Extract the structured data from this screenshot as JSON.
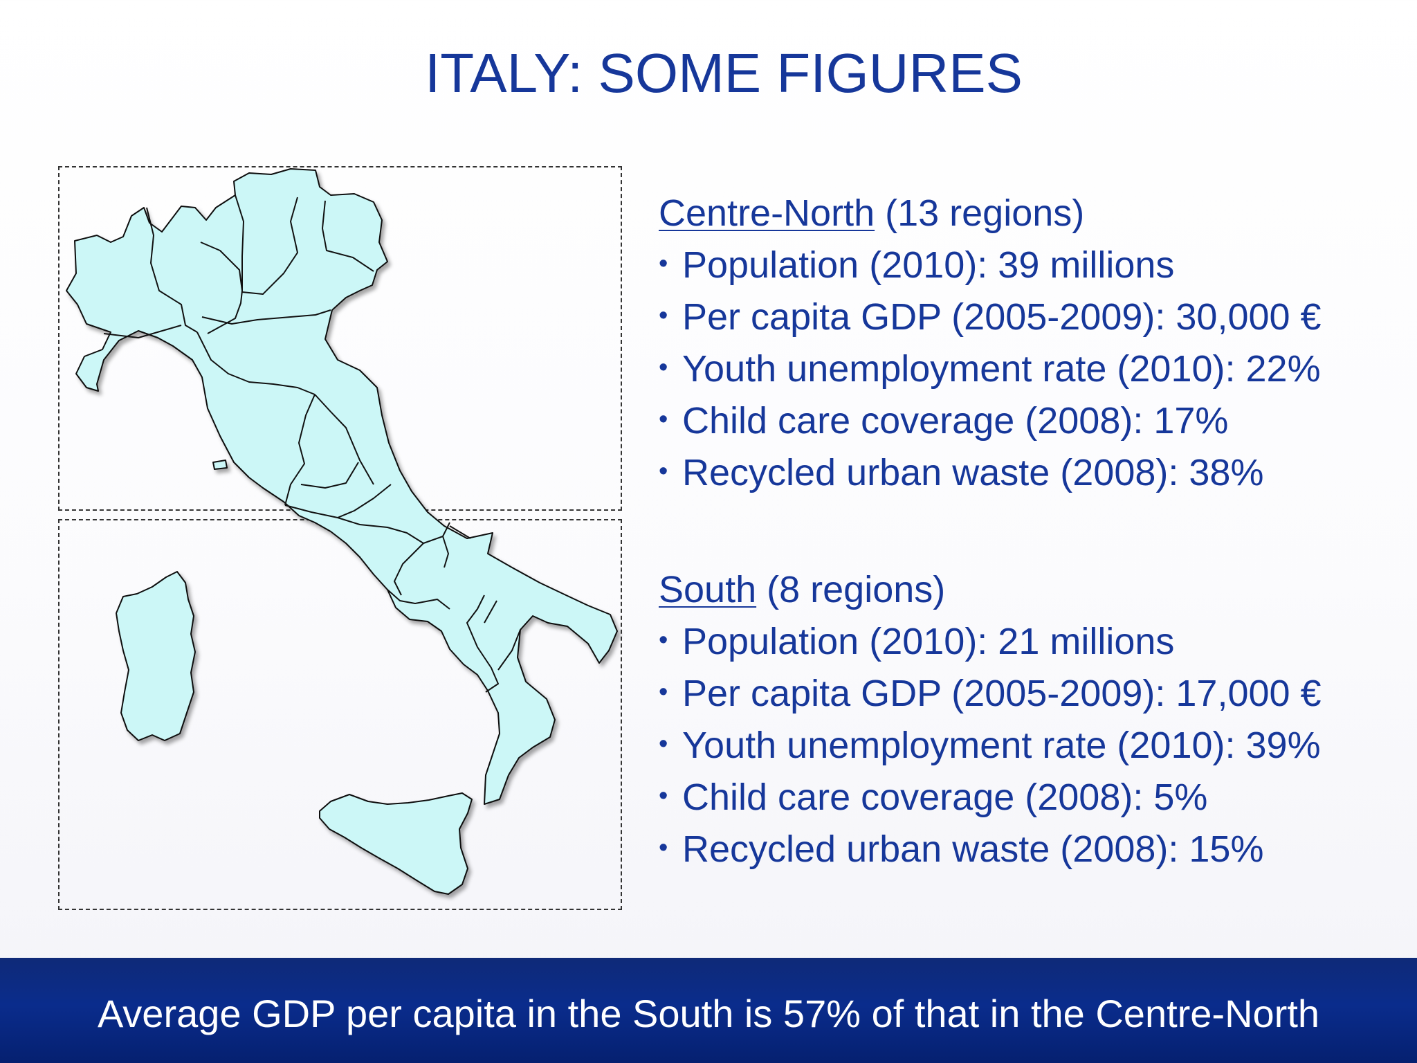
{
  "title": "ITALY: SOME FIGURES",
  "groups": [
    {
      "name": "Centre-North",
      "count": " (13 regions)",
      "items": [
        "Population (2010): 39 millions",
        "Per capita GDP (2005-2009): 30,000 €",
        "Youth unemployment rate (2010): 22%",
        "Child care coverage (2008): 17%",
        "Recycled urban waste (2008): 38%"
      ]
    },
    {
      "name": "South",
      "count": " (8 regions)",
      "items": [
        "Population (2010): 21 millions",
        "Per capita GDP (2005-2009): 17,000 €",
        "Youth unemployment rate (2010): 39%",
        "Child care coverage (2008): 5%",
        "Recycled urban waste (2008): 15%"
      ]
    }
  ],
  "footer": "Average GDP per capita in the South is 57% of that in the Centre-North",
  "colors": {
    "text": "#16379a",
    "region_fill": "#ccf7f7",
    "region_stroke": "#111111",
    "footer_band": "#0a2c8c",
    "footer_text": "#ffffff"
  }
}
